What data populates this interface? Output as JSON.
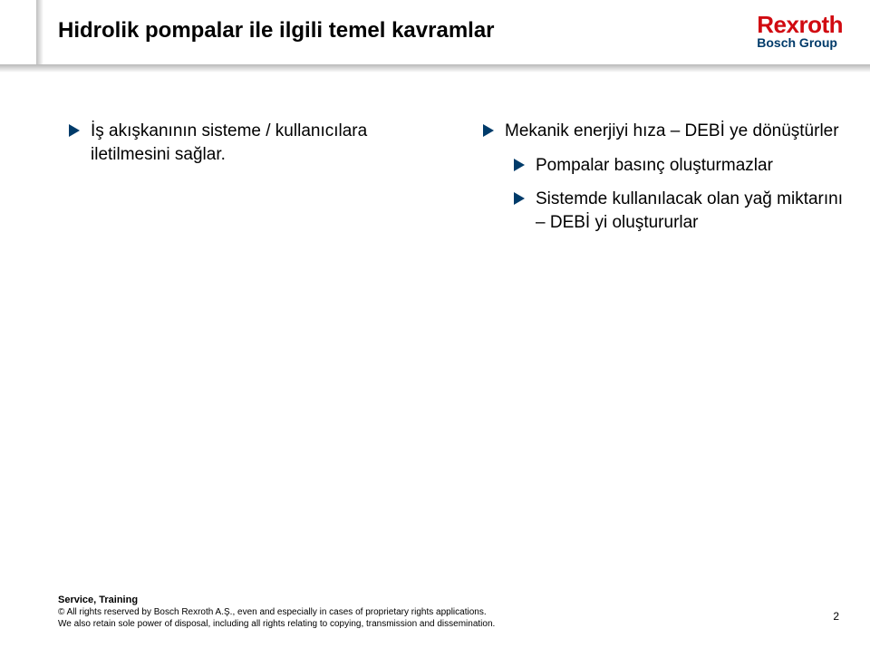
{
  "colors": {
    "brand_red": "#d10a11",
    "brand_blue": "#003b6a",
    "arrow_fill": "#003b6a",
    "text": "#000000",
    "rule": "#bdbdbd",
    "background": "#ffffff"
  },
  "header": {
    "title": "Hidrolik pompalar ile ilgili temel kavramlar",
    "title_fontsize": 24,
    "logo": {
      "brand": "Rexroth",
      "brand_fontsize": 26,
      "sub": "Bosch Group",
      "sub_fontsize": 14
    }
  },
  "content": {
    "bullet_fontsize": 19,
    "left_column": [
      {
        "text": "İş akışkanının sisteme  /  kullanıcılara iletilmesini sağlar."
      }
    ],
    "right_column": [
      {
        "text": "Mekanik enerjiyi hıza – DEBİ ye dönüştürler",
        "children": [
          {
            "text": "Pompalar basınç oluşturmazlar"
          },
          {
            "text": "Sistemde kullanılacak olan yağ miktarını – DEBİ yi oluştururlar"
          }
        ]
      }
    ]
  },
  "footer": {
    "service_line": "Service, Training",
    "copyright_line1": "© All rights reserved by Bosch Rexroth A.Ş., even and especially in cases of proprietary rights applications.",
    "copyright_line2": "We also retain sole power of disposal, including all rights relating to copying, transmission and dissemination.",
    "page_number": "2"
  }
}
